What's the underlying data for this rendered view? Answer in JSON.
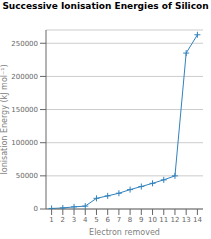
{
  "chart_data": {
    "type": "line",
    "title": "Successive Ionisation Energies of Silicon",
    "x_label": "Electron removed",
    "y_label": "Ionisation Energy (kJ mol⁻¹)",
    "x": [
      1,
      2,
      3,
      4,
      5,
      6,
      7,
      8,
      9,
      10,
      11,
      12,
      13,
      14
    ],
    "values": [
      786,
      1577,
      3232,
      4356,
      16091,
      19784,
      23783,
      29252,
      33878,
      38726,
      43961,
      49972,
      235196,
      262808
    ],
    "xlim": [
      0.5,
      14.5
    ],
    "ylim": [
      0,
      270000
    ],
    "xticks": [
      1,
      2,
      3,
      4,
      5,
      6,
      7,
      8,
      9,
      10,
      11,
      12,
      13,
      14
    ],
    "yticks": [
      0,
      50000,
      100000,
      150000,
      200000,
      250000
    ],
    "grid": true,
    "marker": "plus"
  }
}
